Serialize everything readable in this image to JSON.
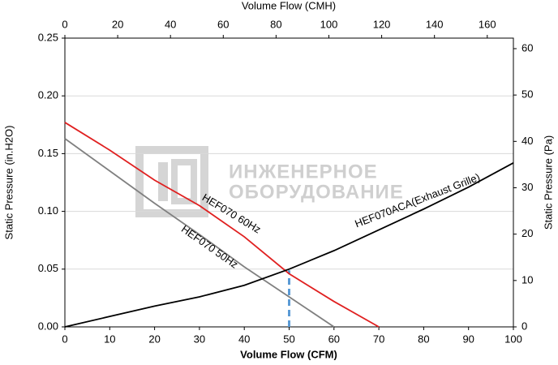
{
  "chart_data": {
    "type": "line",
    "xlabel": "Volume Flow (CFM)",
    "x2label": "Volume Flow (CMH)",
    "ylabel": "Static Pressure (in.H2O)",
    "y2label": "Static Pressure (Pa)",
    "xlim": [
      0,
      100
    ],
    "xticks": [
      0,
      10,
      20,
      30,
      40,
      50,
      60,
      70,
      80,
      90,
      100
    ],
    "x2lim": [
      0,
      169.9
    ],
    "x2ticks": [
      0,
      20,
      40,
      60,
      80,
      100,
      120,
      140,
      160
    ],
    "ylim": [
      0,
      0.25
    ],
    "yticks": [
      {
        "value": 0,
        "label": "0.00"
      },
      {
        "value": 0.05,
        "label": "0.05"
      },
      {
        "value": 0.1,
        "label": "0.10"
      },
      {
        "value": 0.15,
        "label": "0.15"
      },
      {
        "value": 0.2,
        "label": "0.20"
      },
      {
        "value": 0.25,
        "label": "0.25"
      }
    ],
    "y2lim": [
      0,
      62.27
    ],
    "y2ticks": [
      0,
      10,
      20,
      30,
      40,
      50,
      60
    ],
    "grid": true,
    "series": [
      {
        "name": "HEF070 60Hz",
        "color": "#e02020",
        "x": [
          0,
          10,
          20,
          30,
          40,
          50,
          60,
          70
        ],
        "values": [
          0.177,
          0.153,
          0.127,
          0.105,
          0.078,
          0.046,
          0.022,
          0
        ]
      },
      {
        "name": "HEF070 50Hz",
        "color": "#808080",
        "x": [
          0,
          10,
          20,
          30,
          40,
          50,
          60
        ],
        "values": [
          0.163,
          0.135,
          0.107,
          0.08,
          0.052,
          0.026,
          0
        ]
      },
      {
        "name": "HEF070ACA(Exhaust Grille)",
        "color": "#000000",
        "x": [
          0,
          10,
          20,
          30,
          40,
          50,
          60,
          70,
          80,
          90,
          100
        ],
        "values": [
          0,
          0.009,
          0.018,
          0.026,
          0.036,
          0.05,
          0.066,
          0.084,
          0.102,
          0.121,
          0.142
        ]
      }
    ],
    "operating_point": {
      "x": 50,
      "y": 0.049,
      "color": "#5b9bd5"
    }
  },
  "watermark": {
    "line1": "ИНЖЕНЕРНОЕ",
    "line2": "ОБОРУДОВАНИЕ"
  }
}
